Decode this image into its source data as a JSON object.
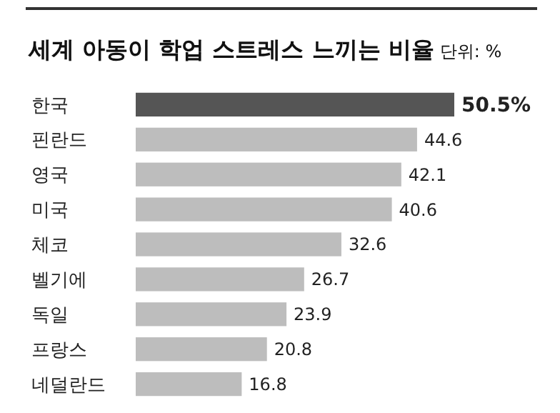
{
  "chart_data": {
    "type": "bar",
    "orientation": "horizontal",
    "title": "세계 아동이 학업 스트레스 느끼는 비율",
    "subtitle": "단위: %",
    "categories": [
      "한국",
      "핀란드",
      "영국",
      "미국",
      "체코",
      "벨기에",
      "독일",
      "프랑스",
      "네덜란드"
    ],
    "values": [
      50.5,
      44.6,
      42.1,
      40.6,
      32.6,
      26.7,
      23.9,
      20.8,
      16.8
    ],
    "colors": [
      "#555555",
      "#bdbdbd",
      "#bdbdbd",
      "#bdbdbd",
      "#bdbdbd",
      "#bdbdbd",
      "#bdbdbd",
      "#bdbdbd",
      "#bdbdbd"
    ],
    "value_labels": [
      "50.5%",
      "44.6",
      "42.1",
      "40.6",
      "32.6",
      "26.7",
      "23.9",
      "20.8",
      "16.8"
    ]
  }
}
